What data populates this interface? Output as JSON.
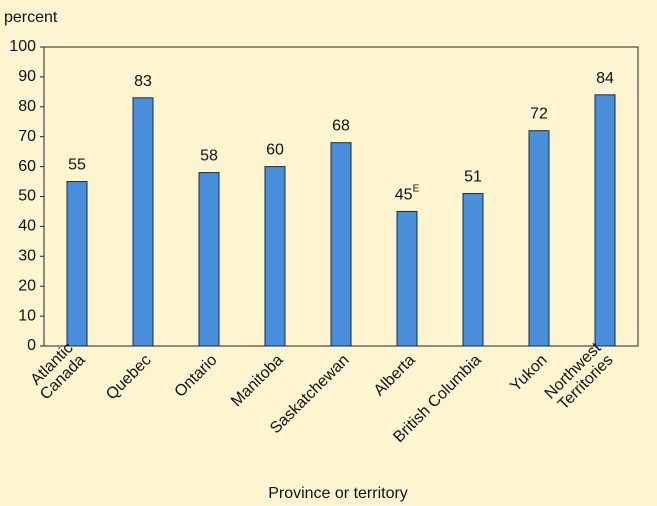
{
  "chart_data": {
    "type": "bar",
    "y_axis_label": "percent",
    "x_axis_label": "Province or territory",
    "categories": [
      [
        "Atlantic",
        "Canada"
      ],
      [
        "Quebec"
      ],
      [
        "Ontario"
      ],
      [
        "Manitoba"
      ],
      [
        "Saskatchewan"
      ],
      [
        "Alberta"
      ],
      [
        "British Columbia"
      ],
      [
        "Yukon"
      ],
      [
        "Northwest",
        "Territories"
      ]
    ],
    "values": [
      55,
      83,
      58,
      60,
      68,
      45,
      51,
      72,
      84
    ],
    "value_labels": [
      {
        "text": "55"
      },
      {
        "text": "83"
      },
      {
        "text": "58"
      },
      {
        "text": "60"
      },
      {
        "text": "68"
      },
      {
        "text": "45",
        "sup": "E"
      },
      {
        "text": "51"
      },
      {
        "text": "72"
      },
      {
        "text": "84"
      }
    ],
    "color": "#4a8fdb",
    "ylim": [
      0,
      100
    ],
    "yticks": [
      0,
      10,
      20,
      30,
      40,
      50,
      60,
      70,
      80,
      90,
      100
    ],
    "grid": false
  }
}
